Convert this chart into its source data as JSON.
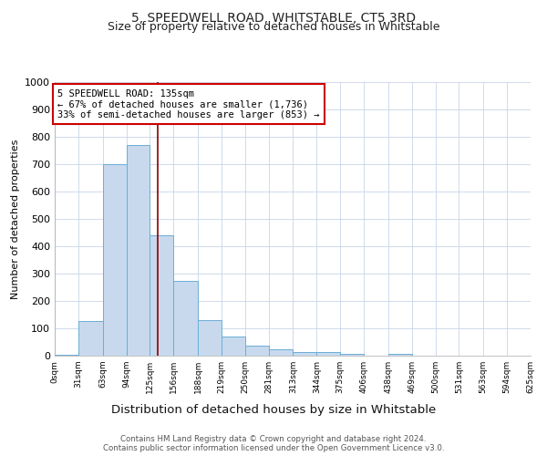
{
  "title1": "5, SPEEDWELL ROAD, WHITSTABLE, CT5 3RD",
  "title2": "Size of property relative to detached houses in Whitstable",
  "xlabel": "Distribution of detached houses by size in Whitstable",
  "ylabel": "Number of detached properties",
  "bar_edges": [
    0,
    31,
    63,
    94,
    125,
    156,
    188,
    219,
    250,
    281,
    313,
    344,
    375,
    406,
    438,
    469,
    500,
    531,
    563,
    594,
    625
  ],
  "bar_heights": [
    5,
    128,
    700,
    770,
    440,
    275,
    130,
    70,
    38,
    22,
    13,
    12,
    7,
    0,
    8,
    0,
    0,
    0,
    0,
    0
  ],
  "bar_color": "#c8d9ee",
  "bar_edge_color": "#6baed6",
  "bar_edge_width": 0.7,
  "ylim": [
    0,
    1000
  ],
  "xlim": [
    0,
    625
  ],
  "property_size": 135,
  "red_line_color": "#8b0000",
  "annotation_text": "5 SPEEDWELL ROAD: 135sqm\n← 67% of detached houses are smaller (1,736)\n33% of semi-detached houses are larger (853) →",
  "annotation_box_color": "#ffffff",
  "annotation_box_edge": "#cc0000",
  "footnote1": "Contains HM Land Registry data © Crown copyright and database right 2024.",
  "footnote2": "Contains public sector information licensed under the Open Government Licence v3.0.",
  "tick_labels": [
    "0sqm",
    "31sqm",
    "63sqm",
    "94sqm",
    "125sqm",
    "156sqm",
    "188sqm",
    "219sqm",
    "250sqm",
    "281sqm",
    "313sqm",
    "344sqm",
    "375sqm",
    "406sqm",
    "438sqm",
    "469sqm",
    "500sqm",
    "531sqm",
    "563sqm",
    "594sqm",
    "625sqm"
  ],
  "title1_fontsize": 10,
  "title2_fontsize": 9,
  "xlabel_fontsize": 9.5,
  "ylabel_fontsize": 8,
  "tick_fontsize": 6.5,
  "annotation_fontsize": 7.5,
  "footnote_fontsize": 6.2,
  "ytick_fontsize": 8
}
